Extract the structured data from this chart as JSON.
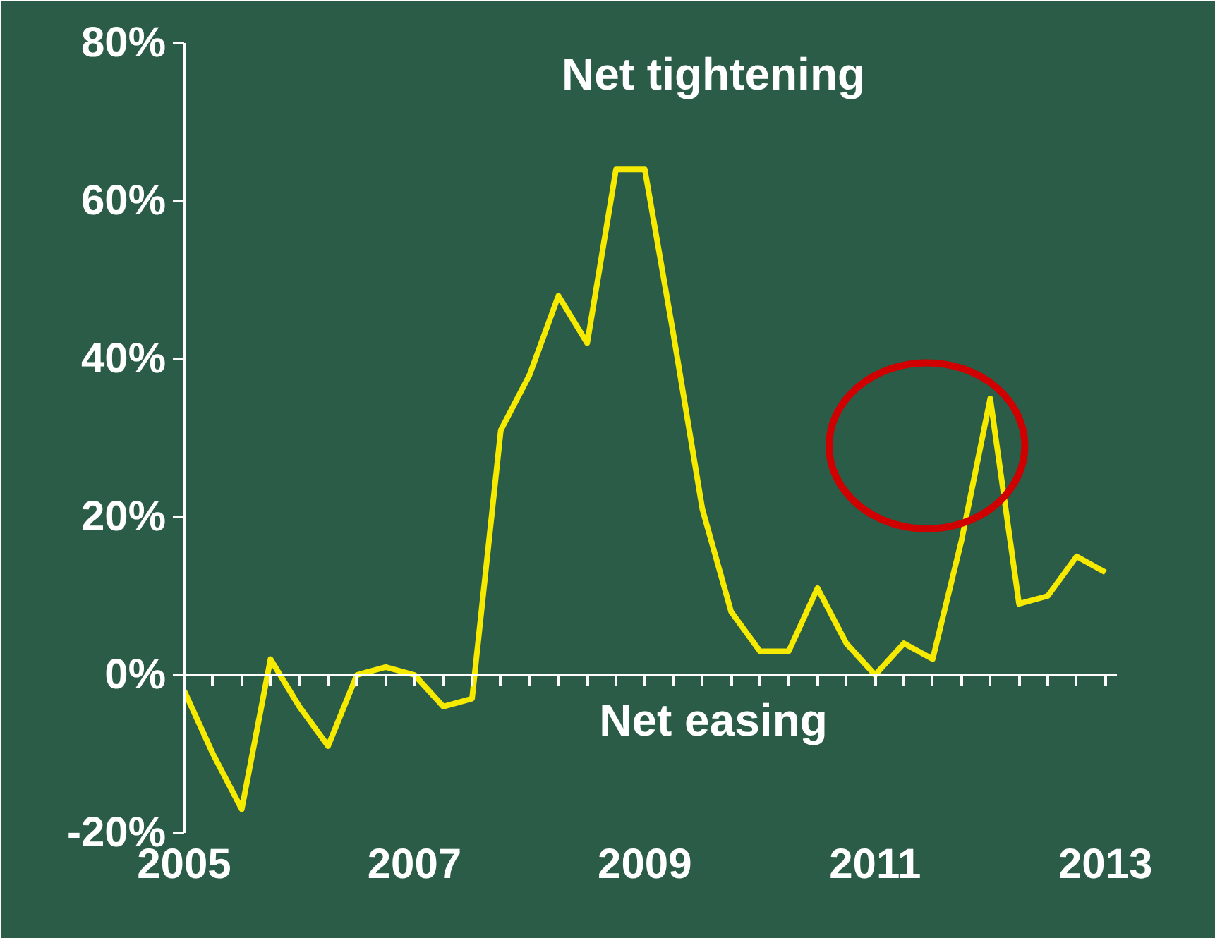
{
  "chart_data": {
    "type": "line",
    "x": [
      2005.0,
      2005.25,
      2005.5,
      2005.75,
      2006.0,
      2006.25,
      2006.5,
      2006.75,
      2007.0,
      2007.25,
      2007.5,
      2007.75,
      2008.0,
      2008.25,
      2008.5,
      2008.75,
      2009.0,
      2009.25,
      2009.5,
      2009.75,
      2010.0,
      2010.25,
      2010.5,
      2010.75,
      2011.0,
      2011.25,
      2011.5,
      2011.75,
      2012.0,
      2012.25,
      2012.5,
      2012.75,
      2013.0
    ],
    "series": [
      {
        "color": "#f5ea00",
        "values": [
          -2,
          -10,
          -17,
          2,
          -4,
          -9,
          0,
          1,
          0,
          -4,
          -3,
          31,
          38,
          48,
          42,
          64,
          64,
          43,
          21,
          8,
          3,
          3,
          11,
          4,
          0,
          4,
          2,
          17,
          35,
          9,
          10,
          15,
          13
        ]
      }
    ],
    "xlim": [
      2005,
      2013.1
    ],
    "xticks": [
      2005,
      2007,
      2009,
      2011,
      2013
    ],
    "ylim": [
      -20,
      80
    ],
    "yticks": [
      {
        "value": -20,
        "label": "-20%"
      },
      {
        "value": 0,
        "label": "0%"
      },
      {
        "value": 20,
        "label": "20%"
      },
      {
        "value": 40,
        "label": "40%"
      },
      {
        "value": 60,
        "label": "60%"
      },
      {
        "value": 80,
        "label": "80%"
      }
    ],
    "annotations": [
      "Net tightening",
      "Net easing"
    ],
    "ref_lines": [
      {
        "axis": "y",
        "value": 0,
        "color": "#ffffff"
      }
    ],
    "grid": false,
    "marker": "none",
    "line_style": "solid"
  }
}
